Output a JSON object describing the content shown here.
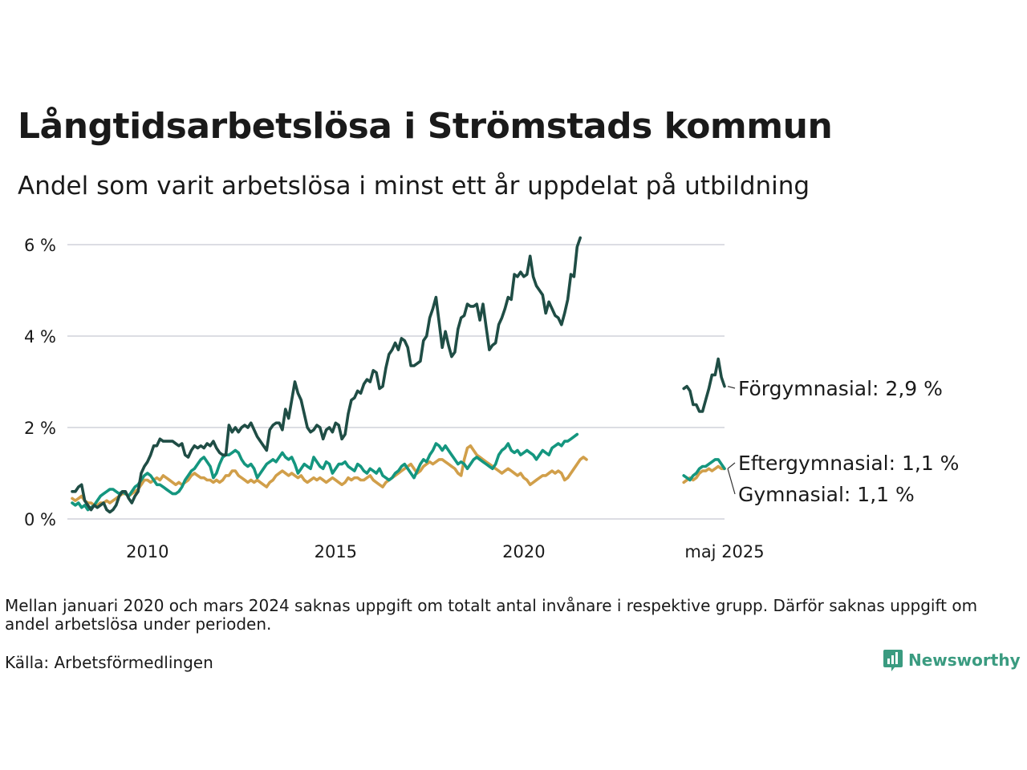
{
  "title": "Långtidsarbetslösa i Strömstads kommun",
  "subtitle": "Andel som varit arbetslösa i minst ett år uppdelat på utbildning",
  "note": "Mellan januari 2020 och mars 2024 saknas uppgift om totalt antal invånare i respektive grupp. Därför saknas uppgift om andel arbetslösa under perioden.",
  "source": "Källa: Arbetsförmedlingen",
  "brand": {
    "name": "Newsworthy",
    "icon": "bar-chart-logo-icon",
    "color": "#3a9b80"
  },
  "chart_data": {
    "type": "line",
    "yaxis": {
      "ticks": [
        0,
        2,
        4,
        6
      ],
      "tick_labels": [
        "0 %",
        "2 %",
        "4 %",
        "6 %"
      ],
      "ylim": [
        0,
        6.3
      ]
    },
    "xaxis": {
      "xlim": [
        "2008-01",
        "2025-05"
      ],
      "ticks": [
        {
          "x": "2010-01",
          "label": "2010"
        },
        {
          "x": "2015-01",
          "label": "2015"
        },
        {
          "x": "2020-01",
          "label": "2020"
        },
        {
          "x": "2025-05",
          "label": "maj 2025"
        }
      ]
    },
    "grid": true,
    "series": [
      {
        "name": "Förgymnasial",
        "color": "#1f4d45",
        "end_label": "Förgymnasial: 2,9 %",
        "segments": [
          {
            "start": "2008-01",
            "values": [
              0.6,
              0.6,
              0.7,
              0.75,
              0.4,
              0.3,
              0.2,
              0.3,
              0.25,
              0.3,
              0.35,
              0.2,
              0.15,
              0.2,
              0.3,
              0.5,
              0.6,
              0.6,
              0.45,
              0.35,
              0.5,
              0.6,
              1.0,
              1.15,
              1.25,
              1.4,
              1.6,
              1.6,
              1.75,
              1.7,
              1.7,
              1.7,
              1.7,
              1.65,
              1.6,
              1.65,
              1.4,
              1.35,
              1.5,
              1.6,
              1.55,
              1.6,
              1.55,
              1.65,
              1.6,
              1.7,
              1.55,
              1.45,
              1.4,
              1.4,
              2.05,
              1.9,
              2.0,
              1.9,
              2.0,
              2.05,
              2.0,
              2.1,
              1.95,
              1.8,
              1.7,
              1.6,
              1.5,
              1.95,
              2.05,
              2.1,
              2.1,
              1.95,
              2.4,
              2.2,
              2.6,
              3.0,
              2.75,
              2.6,
              2.3,
              2.0,
              1.9,
              1.95,
              2.05,
              2.0,
              1.75,
              1.95,
              2.0,
              1.9,
              2.1,
              2.05,
              1.75,
              1.85,
              2.3,
              2.6,
              2.65,
              2.8,
              2.75,
              2.95,
              3.05,
              3.0,
              3.25,
              3.2,
              2.85,
              2.9,
              3.3,
              3.6,
              3.7,
              3.85,
              3.7,
              3.95,
              3.9,
              3.75,
              3.35,
              3.35,
              3.4,
              3.45,
              3.9,
              4.0,
              4.4,
              4.6,
              4.85,
              4.3,
              3.75,
              4.1,
              3.8,
              3.55,
              3.65,
              4.15,
              4.4,
              4.45,
              4.7,
              4.65,
              4.65,
              4.7,
              4.35,
              4.7,
              4.2,
              3.7,
              3.8,
              3.85,
              4.25,
              4.4,
              4.6,
              4.85,
              4.8,
              5.35,
              5.3,
              5.4,
              5.3,
              5.35,
              5.75,
              5.3,
              5.1,
              5.0,
              4.9,
              4.5,
              4.75,
              4.6,
              4.45,
              4.4,
              4.25,
              4.5,
              4.8,
              5.35,
              5.3,
              5.95,
              6.15
            ]
          },
          {
            "start": "2024-04",
            "values": [
              2.85,
              2.9,
              2.8,
              2.5,
              2.5,
              2.35,
              2.35,
              2.6,
              2.85,
              3.15,
              3.15,
              3.5,
              3.1,
              2.9
            ]
          }
        ]
      },
      {
        "name": "Eftergymnasial",
        "color": "#14967f",
        "end_label": "Eftergymnasial: 1,1 %",
        "segments": [
          {
            "start": "2008-01",
            "values": [
              0.35,
              0.3,
              0.35,
              0.25,
              0.3,
              0.2,
              0.25,
              0.3,
              0.4,
              0.5,
              0.55,
              0.6,
              0.65,
              0.65,
              0.6,
              0.55,
              0.6,
              0.55,
              0.5,
              0.6,
              0.7,
              0.75,
              0.85,
              0.95,
              1.0,
              0.95,
              0.85,
              0.75,
              0.75,
              0.7,
              0.65,
              0.6,
              0.55,
              0.55,
              0.6,
              0.7,
              0.85,
              0.95,
              1.05,
              1.1,
              1.2,
              1.3,
              1.35,
              1.25,
              1.15,
              0.9,
              1.0,
              1.2,
              1.35,
              1.4,
              1.4,
              1.45,
              1.5,
              1.45,
              1.3,
              1.2,
              1.15,
              1.2,
              1.1,
              0.9,
              1.0,
              1.1,
              1.2,
              1.25,
              1.3,
              1.25,
              1.35,
              1.45,
              1.35,
              1.3,
              1.35,
              1.2,
              1.0,
              1.1,
              1.2,
              1.15,
              1.1,
              1.35,
              1.25,
              1.15,
              1.1,
              1.25,
              1.2,
              1.0,
              1.1,
              1.2,
              1.2,
              1.25,
              1.15,
              1.1,
              1.05,
              1.2,
              1.15,
              1.05,
              1.0,
              1.1,
              1.05,
              1.0,
              1.1,
              0.95,
              0.9,
              0.85,
              0.9,
              1.0,
              1.05,
              1.15,
              1.2,
              1.1,
              1.0,
              0.9,
              1.05,
              1.2,
              1.3,
              1.25,
              1.4,
              1.5,
              1.65,
              1.6,
              1.5,
              1.6,
              1.5,
              1.4,
              1.3,
              1.2,
              1.25,
              1.2,
              1.1,
              1.2,
              1.3,
              1.35,
              1.3,
              1.25,
              1.2,
              1.15,
              1.1,
              1.2,
              1.4,
              1.5,
              1.55,
              1.65,
              1.5,
              1.45,
              1.5,
              1.4,
              1.45,
              1.5,
              1.45,
              1.4,
              1.3,
              1.4,
              1.5,
              1.45,
              1.4,
              1.55,
              1.6,
              1.65,
              1.6,
              1.7,
              1.7,
              1.75,
              1.8,
              1.85
            ]
          },
          {
            "start": "2024-04",
            "values": [
              0.95,
              0.9,
              0.85,
              0.95,
              1.0,
              1.1,
              1.15,
              1.15,
              1.2,
              1.25,
              1.3,
              1.3,
              1.2,
              1.1
            ]
          }
        ]
      },
      {
        "name": "Gymnasial",
        "color": "#d19f4a",
        "end_label": "Gymnasial: 1,1 %",
        "segments": [
          {
            "start": "2008-01",
            "values": [
              0.45,
              0.4,
              0.45,
              0.5,
              0.4,
              0.35,
              0.35,
              0.3,
              0.3,
              0.35,
              0.35,
              0.4,
              0.35,
              0.4,
              0.45,
              0.5,
              0.55,
              0.55,
              0.5,
              0.55,
              0.6,
              0.65,
              0.75,
              0.85,
              0.85,
              0.8,
              0.85,
              0.9,
              0.85,
              0.95,
              0.9,
              0.85,
              0.8,
              0.75,
              0.8,
              0.75,
              0.8,
              0.85,
              0.95,
              1.0,
              0.95,
              0.9,
              0.9,
              0.85,
              0.85,
              0.8,
              0.85,
              0.8,
              0.85,
              0.95,
              0.95,
              1.05,
              1.05,
              0.95,
              0.9,
              0.85,
              0.8,
              0.85,
              0.8,
              0.85,
              0.8,
              0.75,
              0.7,
              0.8,
              0.85,
              0.95,
              1.0,
              1.05,
              1.0,
              0.95,
              1.0,
              0.95,
              0.9,
              0.95,
              0.85,
              0.8,
              0.85,
              0.9,
              0.85,
              0.9,
              0.85,
              0.8,
              0.85,
              0.9,
              0.85,
              0.8,
              0.75,
              0.8,
              0.9,
              0.85,
              0.9,
              0.9,
              0.85,
              0.85,
              0.9,
              0.95,
              0.85,
              0.8,
              0.75,
              0.7,
              0.8,
              0.85,
              0.9,
              0.95,
              1.0,
              1.05,
              1.1,
              1.15,
              1.2,
              1.1,
              1.0,
              1.05,
              1.15,
              1.2,
              1.25,
              1.2,
              1.25,
              1.3,
              1.3,
              1.25,
              1.2,
              1.15,
              1.1,
              1.0,
              0.95,
              1.3,
              1.55,
              1.6,
              1.5,
              1.4,
              1.35,
              1.3,
              1.25,
              1.2,
              1.15,
              1.1,
              1.05,
              1.0,
              1.05,
              1.1,
              1.05,
              1.0,
              0.95,
              1.0,
              0.9,
              0.85,
              0.75,
              0.8,
              0.85,
              0.9,
              0.95,
              0.95,
              1.0,
              1.05,
              1.0,
              1.05,
              1.0,
              0.85,
              0.9,
              1.0,
              1.1,
              1.2,
              1.3,
              1.35,
              1.3
            ]
          },
          {
            "start": "2024-04",
            "values": [
              0.8,
              0.85,
              0.9,
              0.85,
              0.9,
              1.0,
              1.05,
              1.05,
              1.1,
              1.05,
              1.1,
              1.15,
              1.1,
              1.1
            ]
          }
        ]
      }
    ]
  }
}
